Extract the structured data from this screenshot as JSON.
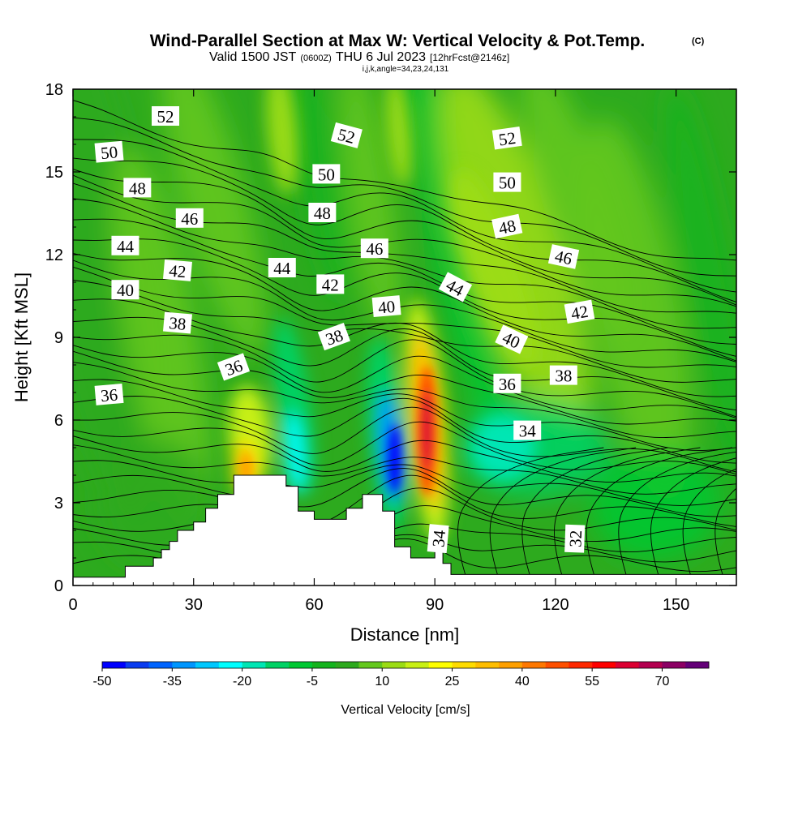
{
  "header": {
    "title": "Wind-Parallel Section at Max W: Vertical Velocity & Pot.Temp.",
    "copyright": "(C)",
    "valid_prefix": "Valid 1500 JST",
    "valid_utc": "(0600Z)",
    "valid_date": "THU 6 Jul 2023",
    "forecast": "[12hrFcst@2146z]",
    "indices": "i,j,k,angle=34,23,24,131"
  },
  "chart_data": {
    "type": "heatmap",
    "xlabel": "Distance [nm]",
    "ylabel": "Height [Kft MSL]",
    "xlim": [
      0,
      165
    ],
    "ylim": [
      0,
      18
    ],
    "x_ticks": [
      "0",
      "30",
      "60",
      "90",
      "120",
      "150"
    ],
    "y_ticks": [
      "0",
      "3",
      "6",
      "9",
      "12",
      "15",
      "18"
    ],
    "colorbar": {
      "label": "Vertical Velocity [cm/s]",
      "ticks": [
        "-50",
        "-35",
        "-20",
        "-5",
        "10",
        "25",
        "40",
        "55",
        "70"
      ],
      "levels": [
        -50,
        -45,
        -40,
        -35,
        -30,
        -25,
        -20,
        -15,
        -10,
        -5,
        0,
        5,
        10,
        15,
        20,
        25,
        30,
        35,
        40,
        45,
        50,
        55,
        60,
        65,
        70,
        75
      ],
      "colors": [
        "#0000ff",
        "#0a3cf0",
        "#0064ff",
        "#0096ff",
        "#00c8ff",
        "#00ffff",
        "#00e6b4",
        "#00d264",
        "#00c832",
        "#14b41e",
        "#2daa1e",
        "#64c81e",
        "#9bdc14",
        "#c8f014",
        "#ffff00",
        "#ffdc00",
        "#ffbe00",
        "#ffa000",
        "#ff7800",
        "#ff5000",
        "#ff2800",
        "#ff0000",
        "#dc0032",
        "#b40050",
        "#8c0064",
        "#640078"
      ]
    },
    "velocity_features": [
      {
        "x": 44,
        "y": 4.5,
        "value": 30
      },
      {
        "x": 52,
        "y": 17,
        "value": 12
      },
      {
        "x": 55,
        "y": 5,
        "value": -30
      },
      {
        "x": 80,
        "y": 4.5,
        "value": -50
      },
      {
        "x": 88,
        "y": 5.5,
        "value": 60
      },
      {
        "x": 82,
        "y": 16.5,
        "value": 12
      },
      {
        "x": 105,
        "y": 11,
        "value": 10
      }
    ],
    "terrain": [
      [
        0,
        0.3
      ],
      [
        13,
        0.7
      ],
      [
        20,
        1.0
      ],
      [
        22,
        1.3
      ],
      [
        24,
        1.6
      ],
      [
        26,
        2.0
      ],
      [
        30,
        2.3
      ],
      [
        33,
        2.8
      ],
      [
        36,
        3.3
      ],
      [
        40,
        4.0
      ],
      [
        50,
        4.0
      ],
      [
        53,
        3.6
      ],
      [
        56,
        2.7
      ],
      [
        60,
        2.4
      ],
      [
        68,
        2.8
      ],
      [
        72,
        3.3
      ],
      [
        77,
        2.7
      ],
      [
        80,
        1.4
      ],
      [
        84,
        1.0
      ],
      [
        90,
        1.3
      ],
      [
        92,
        0.8
      ],
      [
        94,
        0.4
      ],
      [
        165,
        0.4
      ]
    ],
    "theta_contours": [
      {
        "level": "52",
        "labels": [
          {
            "x": 23,
            "y": 17.0,
            "angle": 0
          },
          {
            "x": 68,
            "y": 16.3,
            "angle": 15
          },
          {
            "x": 108,
            "y": 16.2,
            "angle": -8
          }
        ]
      },
      {
        "level": "50",
        "labels": [
          {
            "x": 9,
            "y": 15.7,
            "angle": -5
          },
          {
            "x": 63,
            "y": 14.9,
            "angle": 0
          },
          {
            "x": 108,
            "y": 14.6,
            "angle": 0
          }
        ]
      },
      {
        "level": "48",
        "labels": [
          {
            "x": 16,
            "y": 14.4,
            "angle": 0
          },
          {
            "x": 62,
            "y": 13.5,
            "angle": 0
          },
          {
            "x": 108,
            "y": 13.0,
            "angle": -12
          }
        ]
      },
      {
        "level": "46",
        "labels": [
          {
            "x": 29,
            "y": 13.3,
            "angle": 0
          },
          {
            "x": 75,
            "y": 12.2,
            "angle": 0
          },
          {
            "x": 122,
            "y": 11.9,
            "angle": 12
          }
        ]
      },
      {
        "level": "44",
        "labels": [
          {
            "x": 13,
            "y": 12.3,
            "angle": 0
          },
          {
            "x": 52,
            "y": 11.5,
            "angle": 0
          },
          {
            "x": 95,
            "y": 10.8,
            "angle": 28
          }
        ]
      },
      {
        "level": "42",
        "labels": [
          {
            "x": 26,
            "y": 11.4,
            "angle": 5
          },
          {
            "x": 64,
            "y": 10.9,
            "angle": 0
          },
          {
            "x": 126,
            "y": 9.9,
            "angle": -10
          }
        ]
      },
      {
        "level": "40",
        "labels": [
          {
            "x": 13,
            "y": 10.7,
            "angle": 0
          },
          {
            "x": 78,
            "y": 10.1,
            "angle": -5
          },
          {
            "x": 109,
            "y": 8.9,
            "angle": 25
          }
        ]
      },
      {
        "level": "38",
        "labels": [
          {
            "x": 26,
            "y": 9.5,
            "angle": 5
          },
          {
            "x": 65,
            "y": 9.0,
            "angle": -20
          },
          {
            "x": 122,
            "y": 7.6,
            "angle": 0
          }
        ]
      },
      {
        "level": "36",
        "labels": [
          {
            "x": 9,
            "y": 6.9,
            "angle": -5
          },
          {
            "x": 40,
            "y": 7.9,
            "angle": -20
          },
          {
            "x": 108,
            "y": 7.3,
            "angle": 0
          }
        ]
      },
      {
        "level": "34",
        "labels": [
          {
            "x": 113,
            "y": 5.6,
            "angle": 0
          },
          {
            "x": 91,
            "y": 1.7,
            "angle": -85
          }
        ]
      },
      {
        "level": "32",
        "labels": [
          {
            "x": 125,
            "y": 1.7,
            "angle": -88
          }
        ]
      }
    ]
  }
}
